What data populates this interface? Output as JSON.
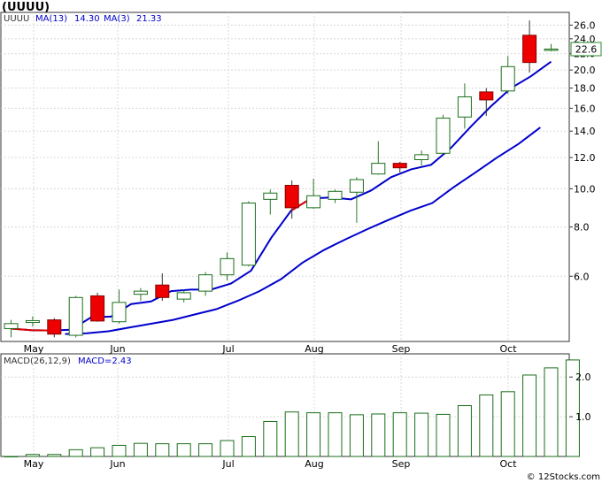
{
  "chart_data": {
    "type": "candlestick",
    "title": "(UUUU)",
    "price_panel": {
      "symbol_label": "UUUU",
      "legend": [
        {
          "name": "MA(13)",
          "value": "14.30",
          "color": "#0000cc"
        },
        {
          "name": "MA(3)",
          "value": "21.33",
          "color": "#0000cc"
        }
      ],
      "last_price_label": "22.6",
      "y_scale": "log",
      "ylim": [
        4.1,
        28
      ],
      "y_ticks": [
        6.0,
        8.0,
        10.0,
        12.0,
        14.0,
        16.0,
        18.0,
        20.0,
        22.0,
        24.0,
        26.0
      ],
      "candles": [
        {
          "o": 4.42,
          "h": 4.65,
          "l": 4.2,
          "c": 4.55
        },
        {
          "o": 4.58,
          "h": 4.75,
          "l": 4.47,
          "c": 4.63
        },
        {
          "o": 4.65,
          "h": 4.7,
          "l": 4.2,
          "c": 4.28
        },
        {
          "o": 4.25,
          "h": 5.35,
          "l": 4.2,
          "c": 5.3
        },
        {
          "o": 5.35,
          "h": 5.45,
          "l": 4.6,
          "c": 4.62
        },
        {
          "o": 4.6,
          "h": 5.55,
          "l": 4.55,
          "c": 5.15
        },
        {
          "o": 5.4,
          "h": 5.6,
          "l": 5.2,
          "c": 5.5
        },
        {
          "o": 5.7,
          "h": 6.1,
          "l": 5.2,
          "c": 5.3
        },
        {
          "o": 5.25,
          "h": 5.55,
          "l": 5.15,
          "c": 5.45
        },
        {
          "o": 5.5,
          "h": 6.15,
          "l": 5.35,
          "c": 6.05
        },
        {
          "o": 6.05,
          "h": 6.9,
          "l": 5.85,
          "c": 6.65
        },
        {
          "o": 6.4,
          "h": 9.3,
          "l": 6.35,
          "c": 9.2
        },
        {
          "o": 9.4,
          "h": 9.95,
          "l": 8.6,
          "c": 9.75
        },
        {
          "o": 10.2,
          "h": 10.5,
          "l": 8.4,
          "c": 8.95
        },
        {
          "o": 8.95,
          "h": 10.6,
          "l": 8.9,
          "c": 9.6
        },
        {
          "o": 9.4,
          "h": 9.95,
          "l": 9.2,
          "c": 9.85
        },
        {
          "o": 9.8,
          "h": 10.7,
          "l": 8.2,
          "c": 10.55
        },
        {
          "o": 10.9,
          "h": 13.2,
          "l": 10.85,
          "c": 11.6
        },
        {
          "o": 11.6,
          "h": 11.7,
          "l": 11.0,
          "c": 11.3
        },
        {
          "o": 11.85,
          "h": 12.5,
          "l": 11.45,
          "c": 12.2
        },
        {
          "o": 12.3,
          "h": 15.4,
          "l": 12.25,
          "c": 15.1
        },
        {
          "o": 15.2,
          "h": 18.5,
          "l": 14.2,
          "c": 17.1
        },
        {
          "o": 17.6,
          "h": 18.0,
          "l": 15.3,
          "c": 16.8
        },
        {
          "o": 17.7,
          "h": 21.7,
          "l": 17.4,
          "c": 20.4
        },
        {
          "o": 24.5,
          "h": 26.7,
          "l": 19.7,
          "c": 20.9
        },
        {
          "o": 22.5,
          "h": 23.3,
          "l": 22.3,
          "c": 22.6
        }
      ],
      "ma3": [
        4.42,
        4.38,
        4.37,
        4.39,
        4.72,
        4.74,
        5.1,
        5.18,
        5.5,
        5.55,
        5.55,
        5.75,
        6.2,
        7.5,
        8.8,
        9.45,
        9.5,
        9.4,
        9.9,
        10.7,
        11.2,
        11.5,
        12.7,
        14.4,
        16.2,
        18.0,
        19.3,
        21.0
      ],
      "ma3_red_segments": [
        [
          0,
          2
        ],
        [
          14,
          15
        ]
      ],
      "ma13": [
        4.28,
        4.3,
        4.35,
        4.45,
        4.55,
        4.65,
        4.8,
        4.95,
        5.2,
        5.5,
        5.9,
        6.5,
        7.0,
        7.45,
        7.9,
        8.35,
        8.8,
        9.2,
        10.1,
        11.0,
        12.0,
        13.0,
        14.3
      ],
      "ma13_x_start": 2.5
    },
    "macd_panel": {
      "label": "MACD(26,12,9)",
      "value_label": "MACD=2.43",
      "ylim": [
        0,
        2.45
      ],
      "y_ticks": [
        1.0,
        2.0
      ],
      "bars": [
        0.0,
        0.05,
        0.05,
        0.17,
        0.22,
        0.28,
        0.33,
        0.32,
        0.32,
        0.32,
        0.4,
        0.5,
        0.88,
        1.12,
        1.1,
        1.1,
        1.05,
        1.07,
        1.1,
        1.09,
        1.06,
        1.28,
        1.55,
        1.63,
        2.05,
        2.23,
        2.43
      ]
    },
    "x_months": [
      "May",
      "Jun",
      "Jul",
      "Aug",
      "Sep",
      "Oct"
    ],
    "credit": "© 12Stocks.com"
  }
}
